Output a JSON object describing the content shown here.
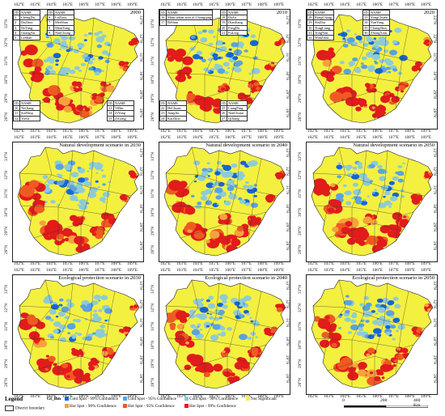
{
  "colors": {
    "cold99": "#1565d8",
    "cold95": "#5aa2e0",
    "cold90": "#8ecbd6",
    "not_significant": "#f4f040",
    "hot90": "#f6a23c",
    "hot95": "#ef5a23",
    "hot99": "#e21b1b",
    "boundary": "#333333"
  },
  "axes": {
    "lon_labels": [
      "102°E",
      "103°E",
      "104°E",
      "105°E",
      "106°E",
      "107°E",
      "108°E",
      "109°E"
    ],
    "lat_labels": [
      "33°N",
      "32°N",
      "31°N",
      "30°N",
      "29°N",
      "28°N"
    ]
  },
  "panels": [
    {
      "name": "panel-2000",
      "title": "2000"
    },
    {
      "name": "panel-2010",
      "title": "2010"
    },
    {
      "name": "panel-2020",
      "title": "2020"
    },
    {
      "name": "panel-nat-2030",
      "title": "Natural development scenario in 2030"
    },
    {
      "name": "panel-nat-2040",
      "title": "Natural development scenario in 2040"
    },
    {
      "name": "panel-nat-2050",
      "title": "Natural development scenario in 2050"
    },
    {
      "name": "panel-eco-2030",
      "title": "Ecological protection scenario in 2030"
    },
    {
      "name": "panel-eco-2040",
      "title": "Ecological protection scenario in 2040"
    },
    {
      "name": "panel-eco-2050",
      "title": "Ecological protection scenario in 2050"
    }
  ],
  "tables": {
    "p2000_a": {
      "header": [
        "ID",
        "NAME"
      ],
      "rows": [
        [
          "1",
          "ChengDu"
        ],
        [
          "2",
          "DaZhou"
        ],
        [
          "3",
          "DeYang"
        ],
        [
          "4",
          "GuangAn"
        ],
        [
          "5",
          "LeShan"
        ]
      ]
    },
    "p2000_b": {
      "header": [
        "ID",
        "NAME"
      ],
      "rows": [
        [
          "6",
          "LuZhou"
        ],
        [
          "7",
          "MeiShan"
        ],
        [
          "8",
          "MianYang"
        ],
        [
          "9",
          "NanChong"
        ]
      ]
    },
    "p2000_c": {
      "header": [
        "ID",
        "NAME"
      ],
      "rows": [
        [
          "10",
          "NeiJiang"
        ],
        [
          "11",
          "SuiNing"
        ],
        [
          "12",
          "YaAn"
        ]
      ]
    },
    "p2000_d": {
      "header": [
        "ID",
        "NAME"
      ],
      "rows": [
        [
          "13",
          "YiBin"
        ],
        [
          "14",
          "ZiYang"
        ],
        [
          "15",
          "ZiGong"
        ]
      ]
    },
    "p2010_a": {
      "header": [
        "ID",
        "NAME"
      ],
      "rows": [
        [
          "16",
          "Main urban area of Chongqing"
        ],
        [
          "17",
          "BiShan"
        ]
      ]
    },
    "p2010_b": {
      "header": [
        "ID",
        "NAME"
      ],
      "rows": [
        [
          "18",
          "DaZu"
        ],
        [
          "19",
          "DianJiang"
        ],
        [
          "20",
          "FengDu"
        ],
        [
          "21",
          "FuLing"
        ]
      ]
    },
    "p2010_c": {
      "header": [
        "ID",
        "NAME"
      ],
      "rows": [
        [
          "22",
          "HeChuan"
        ],
        [
          "23",
          "JiangJin"
        ],
        [
          "24",
          "KaiZhou"
        ]
      ]
    },
    "p2010_d": {
      "header": [
        "ID",
        "NAME"
      ],
      "rows": [
        [
          "25",
          "LiangPing"
        ],
        [
          "26",
          "NanChuan"
        ],
        [
          "27",
          "QiJiang"
        ]
      ]
    },
    "p2020_a": {
      "header": [
        "ID",
        "NAME"
      ],
      "rows": [
        [
          "28",
          "RongChang"
        ],
        [
          "29",
          "ShiZhu"
        ],
        [
          "30",
          "TongLiang"
        ],
        [
          "31",
          "TongNan"
        ],
        [
          "32",
          "WanZhou"
        ]
      ]
    },
    "p2020_b": {
      "header": [
        "ID",
        "NAME"
      ],
      "rows": [
        [
          "33",
          "YongChuan"
        ],
        [
          "34",
          "YunYang"
        ],
        [
          "35",
          "ChangShou"
        ],
        [
          "36",
          "ZhongXian"
        ]
      ]
    }
  },
  "legend": {
    "title": "Legend",
    "gi_title": "Gi_Bin",
    "district": "District boundary",
    "items": [
      {
        "label": "Cold Spot - 99% Confidence",
        "color": "#1565d8"
      },
      {
        "label": "Cold Spot - 95% Confidence",
        "color": "#5aa2e0"
      },
      {
        "label": "Cold Spot - 90% Confidence",
        "color": "#8ecbd6"
      },
      {
        "label": "Not Significant",
        "color": "#f4f040"
      },
      {
        "label": "Hot Spot - 90% Confidence",
        "color": "#f6a23c"
      },
      {
        "label": "Hot Spot - 95% Confidence",
        "color": "#ef5a23"
      },
      {
        "label": "Hot Spot - 99% Confidence",
        "color": "#e21b1b"
      }
    ],
    "scale": {
      "zero": "0",
      "mid": "200",
      "max": "400 Km"
    }
  }
}
